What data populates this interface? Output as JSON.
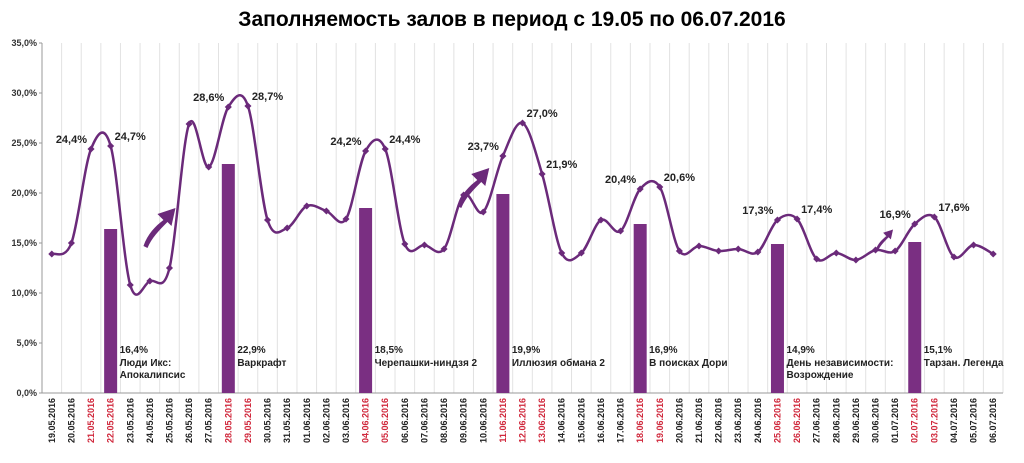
{
  "chart_data": {
    "type": "line",
    "title": "Заполняемость залов в период с 19.05 по 06.07.2016",
    "ylim": [
      0,
      35
    ],
    "yticks": [
      "0,0%",
      "5,0%",
      "10,0%",
      "15,0%",
      "20,0%",
      "25,0%",
      "30,0%",
      "35,0%"
    ],
    "grid": "vertical",
    "line_color": "#6b2a7a",
    "bar_color": "#7a2f82",
    "weekend_tick_color": "#d0283c",
    "normal_tick_color": "#222222",
    "categories": [
      "19.05.2016",
      "20.05.2016",
      "21.05.2016",
      "22.05.2016",
      "23.05.2016",
      "24.05.2016",
      "25.05.2016",
      "26.05.2016",
      "27.05.2016",
      "28.05.2016",
      "29.05.2016",
      "30.05.2016",
      "31.05.2016",
      "01.06.2016",
      "02.06.2016",
      "03.06.2016",
      "04.06.2016",
      "05.06.2016",
      "06.06.2016",
      "07.06.2016",
      "08.06.2016",
      "09.06.2016",
      "10.06.2016",
      "11.06.2016",
      "12.06.2016",
      "13.06.2016",
      "14.06.2016",
      "15.06.2016",
      "16.06.2016",
      "17.06.2016",
      "18.06.2016",
      "19.06.2016",
      "20.06.2016",
      "21.06.2016",
      "22.06.2016",
      "23.06.2016",
      "24.06.2016",
      "25.06.2016",
      "26.06.2016",
      "27.06.2016",
      "28.06.2016",
      "29.06.2016",
      "30.06.2016",
      "01.07.2016",
      "02.07.2016",
      "03.07.2016",
      "04.07.2016",
      "05.07.2016",
      "06.07.2016"
    ],
    "weekend_indices": [
      2,
      3,
      9,
      10,
      16,
      17,
      23,
      24,
      25,
      30,
      31,
      37,
      38,
      44,
      45
    ],
    "series": [
      {
        "values": [
          13.9,
          15.0,
          24.4,
          24.7,
          10.8,
          11.2,
          12.5,
          26.9,
          22.6,
          28.6,
          28.7,
          17.3,
          16.5,
          18.7,
          18.2,
          17.4,
          24.2,
          24.4,
          14.9,
          14.8,
          14.4,
          19.8,
          18.1,
          23.7,
          27.0,
          21.9,
          14.0,
          14.0,
          17.3,
          16.2,
          20.4,
          20.6,
          14.2,
          14.7,
          14.2,
          14.4,
          14.1,
          17.3,
          17.4,
          13.4,
          14.0,
          13.3,
          14.3,
          14.2,
          16.9,
          17.6,
          13.6,
          14.8,
          13.9
        ]
      }
    ],
    "data_labels": [
      {
        "index": 2,
        "text": "24,4%"
      },
      {
        "index": 3,
        "text": "24,7%"
      },
      {
        "index": 9,
        "text": "28,6%"
      },
      {
        "index": 10,
        "text": "28,7%"
      },
      {
        "index": 16,
        "text": "24,2%"
      },
      {
        "index": 17,
        "text": "24,4%"
      },
      {
        "index": 23,
        "text": "23,7%"
      },
      {
        "index": 24,
        "text": "27,0%"
      },
      {
        "index": 25,
        "text": "21,9%"
      },
      {
        "index": 30,
        "text": "20,4%"
      },
      {
        "index": 31,
        "text": "20,6%"
      },
      {
        "index": 37,
        "text": "17,3%"
      },
      {
        "index": 38,
        "text": "17,4%"
      },
      {
        "index": 44,
        "text": "16,9%"
      },
      {
        "index": 45,
        "text": "17,6%"
      }
    ],
    "bars": [
      {
        "index": 3,
        "value": 16.4,
        "value_label": "16,4%",
        "lines": [
          "Люди Икс:",
          "Апокалипсис"
        ]
      },
      {
        "index": 9,
        "value": 22.9,
        "value_label": "22,9%",
        "lines": [
          "Варкрафт"
        ]
      },
      {
        "index": 16,
        "value": 18.5,
        "value_label": "18,5%",
        "lines": [
          "Черепашки-ниндзя 2"
        ]
      },
      {
        "index": 23,
        "value": 19.9,
        "value_label": "19,9%",
        "lines": [
          "Иллюзия обмана 2"
        ]
      },
      {
        "index": 30,
        "value": 16.9,
        "value_label": "16,9%",
        "lines": [
          "В поисках Дори"
        ]
      },
      {
        "index": 37,
        "value": 14.9,
        "value_label": "14,9%",
        "lines": [
          "День независимости:",
          "Возрождение"
        ]
      },
      {
        "index": 44,
        "value": 15.1,
        "value_label": "15,1%",
        "lines": [
          "Тарзан. Легенда"
        ]
      }
    ],
    "arrows": [
      {
        "index": 6,
        "value": 17.5
      },
      {
        "index": 22,
        "value": 21.5
      },
      {
        "index": 43,
        "value": 15.8
      }
    ]
  }
}
